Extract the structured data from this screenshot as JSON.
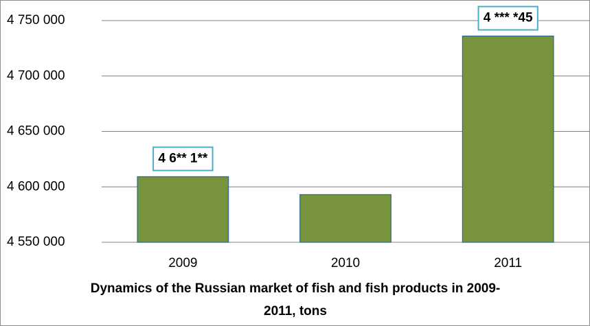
{
  "chart_data": {
    "type": "bar",
    "title": "Dynamics of the Russian market of fish and fish products in 2009-2011, tons",
    "categories": [
      "2009",
      "2010",
      "2011"
    ],
    "values": [
      4609150,
      4593000,
      4736045
    ],
    "value_labels": [
      "4 6** 1**",
      null,
      "4 *** *45"
    ],
    "color": "#77933c",
    "ylim": [
      4550000,
      4750000
    ],
    "yticks": [
      {
        "value": 4550000,
        "label": "4 550 000"
      },
      {
        "value": 4600000,
        "label": "4 600 000"
      },
      {
        "value": 4650000,
        "label": "4 650 000"
      },
      {
        "value": 4700000,
        "label": "4 700 000"
      },
      {
        "value": 4750000,
        "label": "4 750 000"
      }
    ],
    "grid": true
  }
}
